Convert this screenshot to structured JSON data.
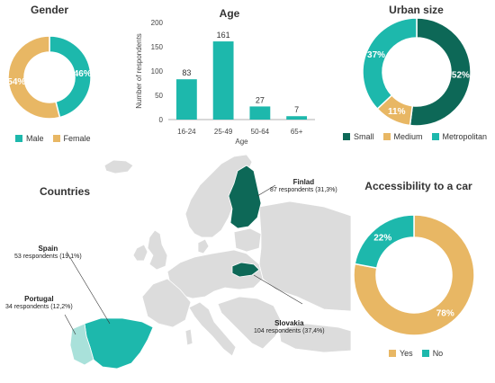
{
  "colors": {
    "teal": "#1db8ac",
    "gold": "#e8b764",
    "dark_green": "#0d6857",
    "light_teal": "#a9e1da",
    "map_grey": "#dcdcdc",
    "map_border": "#ffffff"
  },
  "gender": {
    "title": "Gender",
    "legend": [
      "Male",
      "Female"
    ],
    "chart_data": {
      "type": "pie",
      "labels": [
        "Male",
        "Female"
      ],
      "values": [
        46,
        54
      ],
      "value_labels": [
        "46%",
        "54%"
      ],
      "colors": [
        "#1db8ac",
        "#e8b764"
      ],
      "donut": true,
      "legend_position": "bottom"
    }
  },
  "age": {
    "title": "Age",
    "chart_data": {
      "type": "bar",
      "categories": [
        "16-24",
        "25-49",
        "50-64",
        "65+"
      ],
      "values": [
        83,
        161,
        27,
        7
      ],
      "data_labels": [
        "83",
        "161",
        "27",
        "7"
      ],
      "ylabel": "Number of respondents",
      "xlabel": "Age",
      "ylim": [
        0,
        200
      ],
      "yticks": [
        "0",
        "50",
        "100",
        "150",
        "200"
      ],
      "color": "#1db8ac",
      "grid": false
    }
  },
  "urban": {
    "title": "Urban size",
    "legend": [
      "Small",
      "Medium",
      "Metropolitan"
    ],
    "chart_data": {
      "type": "pie",
      "labels": [
        "Small",
        "Medium",
        "Metropolitan"
      ],
      "values": [
        52,
        11,
        37
      ],
      "value_labels": [
        "52%",
        "11%",
        "37%"
      ],
      "colors": [
        "#0d6857",
        "#e8b764",
        "#1db8ac"
      ],
      "donut": true,
      "legend_position": "bottom"
    }
  },
  "car": {
    "title": "Accessibility to a car",
    "legend": [
      "Yes",
      "No"
    ],
    "chart_data": {
      "type": "pie",
      "labels": [
        "Yes",
        "No"
      ],
      "values": [
        78,
        22
      ],
      "value_labels": [
        "78%",
        "22%"
      ],
      "colors": [
        "#e8b764",
        "#1db8ac"
      ],
      "donut": true,
      "legend_position": "bottom"
    }
  },
  "countries": {
    "title": "Countries",
    "items": [
      {
        "name": "Finlad",
        "detail": "87 respondents (31,3%)"
      },
      {
        "name": "Spain",
        "detail": "53 respondents (19,1%)"
      },
      {
        "name": "Portugal",
        "detail": "34 respondents (12,2%)"
      },
      {
        "name": "Slovakia",
        "detail": "104 respondents (37,4%)"
      }
    ]
  }
}
